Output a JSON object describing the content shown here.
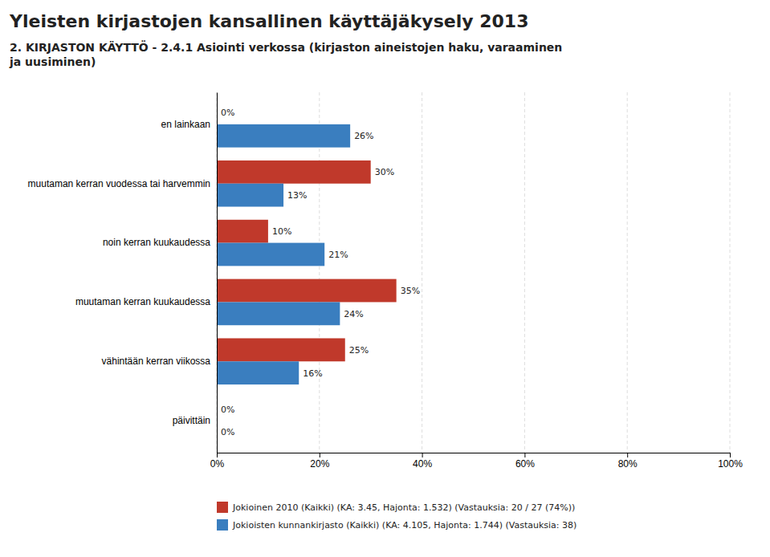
{
  "chart_data": {
    "type": "bar",
    "orientation": "horizontal",
    "title": "Yleisten kirjastojen kansallinen käyttäjäkysely 2013",
    "subtitle": "2. KIRJASTON KÄYTTÖ - 2.4.1 Asiointi verkossa (kirjaston aineistojen haku, varaaminen\nja uusiminen)",
    "categories": [
      "en lainkaan",
      "muutaman kerran vuodessa tai harvemmin",
      "noin kerran kuukaudessa",
      "muutaman kerran kuukaudessa",
      "vähintään kerran viikossa",
      "päivittäin"
    ],
    "series": [
      {
        "name": "Jokioinen 2010 (Kaikki) (KA: 3.45, Hajonta: 1.532) (Vastauksia: 20 / 27 (74%))",
        "color": "#C0392B",
        "values": [
          0,
          30,
          10,
          35,
          25,
          0
        ],
        "value_labels": [
          "0%",
          "30%",
          "10%",
          "35%",
          "25%",
          "0%"
        ]
      },
      {
        "name": "Jokioisten kunnankirjasto (Kaikki) (KA: 4.105, Hajonta: 1.744) (Vastauksia: 38)",
        "color": "#3A7EBF",
        "values": [
          26,
          13,
          21,
          24,
          16,
          0
        ],
        "value_labels": [
          "26%",
          "13%",
          "21%",
          "24%",
          "16%",
          "0%"
        ]
      }
    ],
    "xlim": [
      0,
      100
    ],
    "xticks": [
      {
        "value": 0,
        "label": "0%"
      },
      {
        "value": 20,
        "label": "20%"
      },
      {
        "value": 40,
        "label": "40%"
      },
      {
        "value": 60,
        "label": "60%"
      },
      {
        "value": 80,
        "label": "80%"
      },
      {
        "value": 100,
        "label": "100%"
      }
    ],
    "grid": true,
    "data_labels": true,
    "legend": "bottom-left"
  }
}
